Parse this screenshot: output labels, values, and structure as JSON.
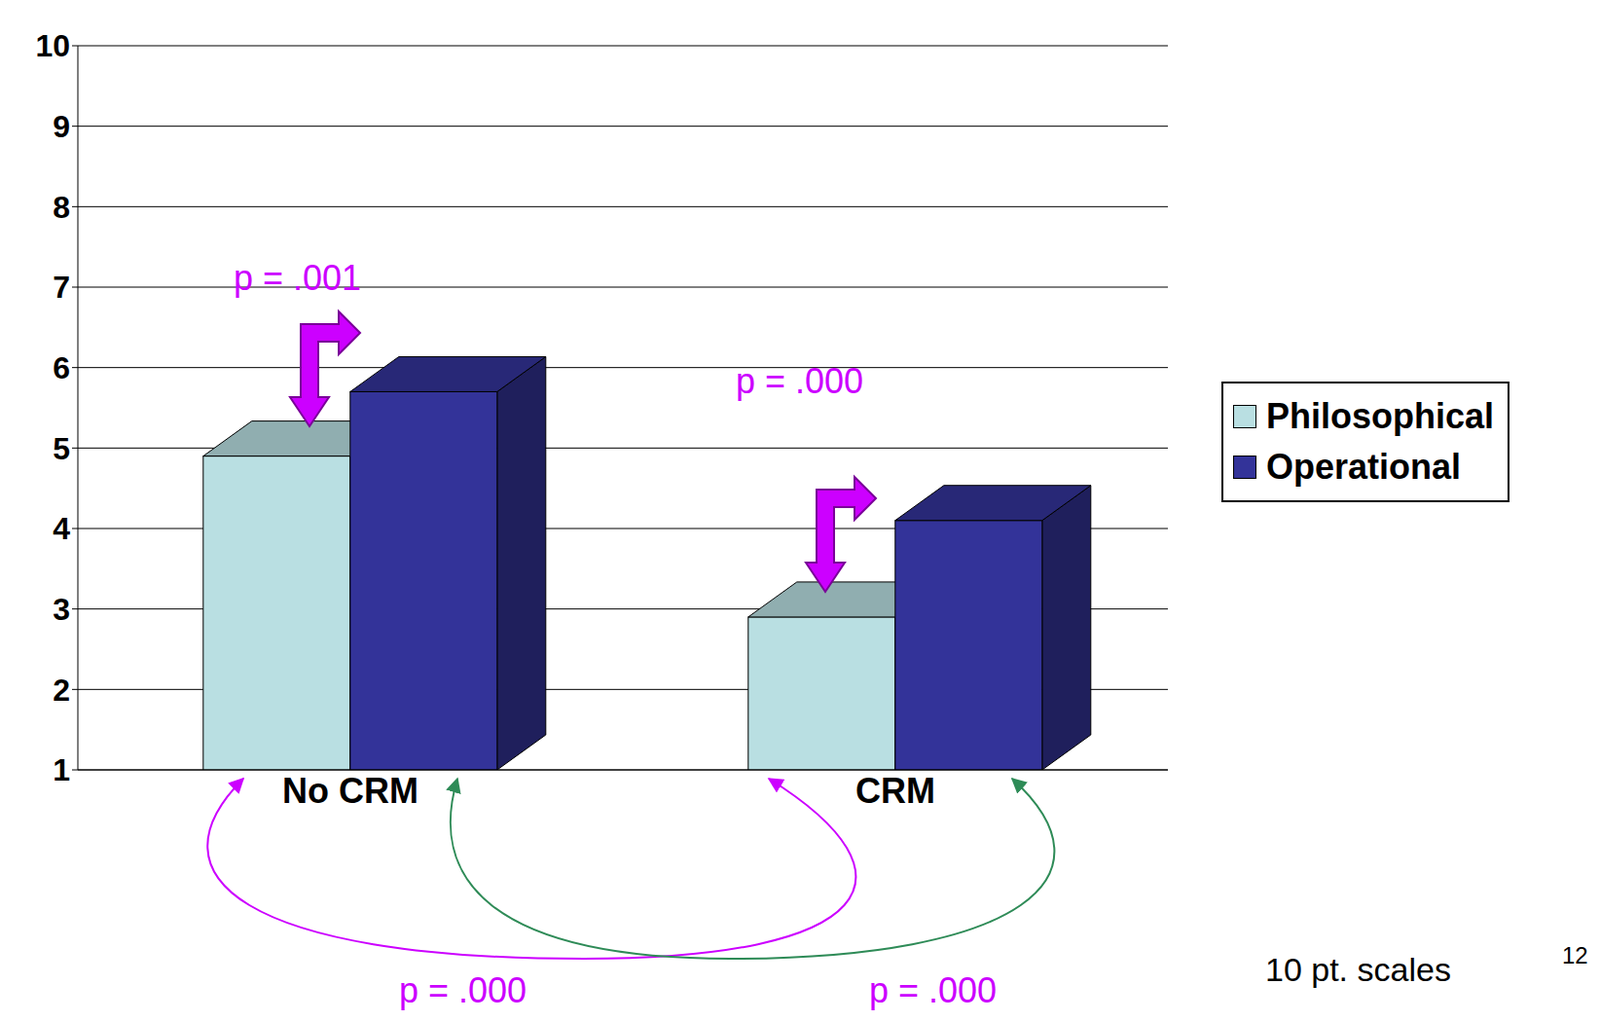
{
  "chart_data": {
    "type": "bar",
    "categories": [
      "No CRM",
      "CRM"
    ],
    "series": [
      {
        "name": "Philosophical",
        "color": "#b9dfe2",
        "values": [
          4.9,
          2.9
        ]
      },
      {
        "name": "Operational",
        "color": "#333399",
        "values": [
          5.7,
          4.1
        ]
      }
    ],
    "ylim": [
      1,
      10
    ],
    "yticks": [
      1,
      2,
      3,
      4,
      5,
      6,
      7,
      8,
      9,
      10
    ],
    "grid": true,
    "legend": "right",
    "annotations": [
      "p = .001",
      "p = .000",
      "p = .000",
      "p = .000",
      "10 pt. scales",
      "12"
    ]
  }
}
